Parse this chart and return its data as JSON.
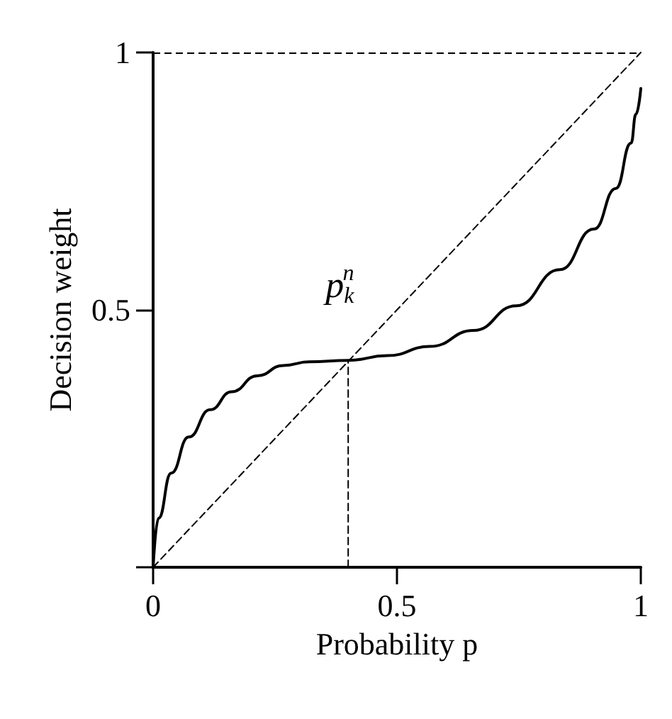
{
  "chart_data": {
    "type": "line",
    "xlabel": "Probability p",
    "ylabel": "Decision weight",
    "xlim": [
      0,
      1
    ],
    "ylim": [
      0,
      1
    ],
    "xticks": [
      0,
      0.5,
      1
    ],
    "yticks": [
      {
        "value": 0,
        "label": null
      },
      0.5,
      1
    ],
    "grid": false,
    "marker": "none",
    "series": [
      {
        "color": "#000000",
        "line_style": "solid",
        "x": [
          0,
          0.011,
          0.037,
          0.073,
          0.117,
          0.161,
          0.214,
          0.267,
          0.32,
          0.4,
          0.48,
          0.568,
          0.657,
          0.745,
          0.834,
          0.904,
          0.949,
          0.98,
          0.99,
          1
        ],
        "values": [
          0,
          0.095,
          0.183,
          0.253,
          0.306,
          0.341,
          0.372,
          0.392,
          0.399,
          0.402,
          0.411,
          0.429,
          0.46,
          0.508,
          0.578,
          0.657,
          0.736,
          0.824,
          0.88,
          0.93
        ]
      },
      {
        "color": "#000000",
        "line_style": "dashed",
        "x": [
          0,
          1
        ],
        "values": [
          0,
          1
        ]
      },
      {
        "color": "#000000",
        "line_style": "dashed",
        "x": [
          0.4,
          0.4
        ],
        "values": [
          0,
          0.4
        ]
      }
    ],
    "ref_lines": [
      {
        "axis": "y",
        "value": 1,
        "color": "#000000",
        "line_style": "dashed"
      }
    ],
    "annotations": [
      {
        "text": "p$_{k}$$^{n}$",
        "x": 0.4,
        "y": 0.4
      }
    ]
  }
}
